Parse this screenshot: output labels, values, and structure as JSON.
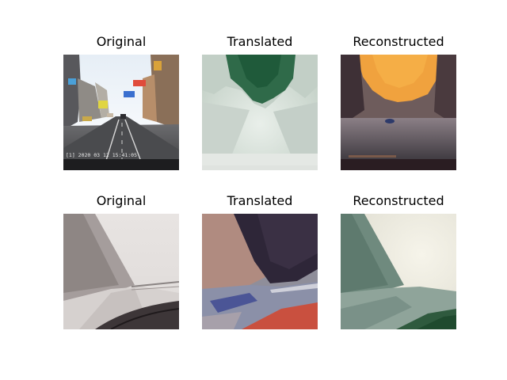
{
  "figure": {
    "rows": [
      {
        "panels": [
          {
            "title": "Original"
          },
          {
            "title": "Translated"
          },
          {
            "title": "Reconstructed"
          }
        ]
      },
      {
        "panels": [
          {
            "title": "Original"
          },
          {
            "title": "Translated"
          },
          {
            "title": "Reconstructed"
          }
        ]
      }
    ],
    "row1_original_stamp": "[1] 2020 03 12  15:41:05"
  }
}
